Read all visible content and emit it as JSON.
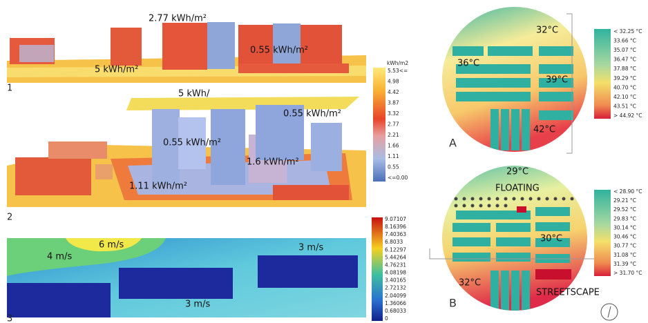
{
  "panel_1": {
    "label": "1",
    "annotations": [
      "2.77 kWh/m²",
      "0.55 kWh/m²",
      "5 kWh/m²"
    ]
  },
  "legend_energy": {
    "title": "kWh/m2",
    "labels": [
      "5.53<=",
      "4.98",
      "4.42",
      "3.87",
      "3.32",
      "2.77",
      "2.21",
      "1.66",
      "1.11",
      "0.55",
      "<=0.00"
    ]
  },
  "panel_2": {
    "label": "2",
    "annotations": [
      "5 kWh/",
      "0.55 kWh/m²",
      "0.55 kWh/m²",
      "1.6 kWh/m²",
      "1.11 kWh/m²"
    ]
  },
  "panel_3": {
    "label": "3",
    "annotations": [
      "6 m/s",
      "4 m/s",
      "3 m/s",
      "3 m/s"
    ]
  },
  "legend_wind": {
    "labels": [
      "9.07107",
      "8.16396",
      "7.40363",
      "6.8033",
      "6.12297",
      "5.44264",
      "4.76231",
      "4.08198",
      "3.40165",
      "2.72132",
      "2.04099",
      "1.36066",
      "0.68033",
      "0"
    ]
  },
  "panel_a": {
    "label": "A",
    "annotations": [
      "32°C",
      "36°C",
      "39°C",
      "42°C"
    ],
    "legend": [
      "< 32.25 °C",
      "33.66 °C",
      "35.07 °C",
      "36.47 °C",
      "37.88 °C",
      "39.29 °C",
      "40.70 °C",
      "42.10 °C",
      "43.51 °C",
      "> 44.92 °C"
    ]
  },
  "panel_b": {
    "label": "B",
    "annotations": [
      "29°C",
      "FLOATING",
      "30°C",
      "32°C",
      "STREETSCAPE"
    ],
    "legend": [
      "< 28.90 °C",
      "29.21 °C",
      "29.52 °C",
      "29.83 °C",
      "30.14 °C",
      "30.46 °C",
      "30.77 °C",
      "31.08 °C",
      "31.39 °C",
      "> 31.70 °C"
    ]
  }
}
